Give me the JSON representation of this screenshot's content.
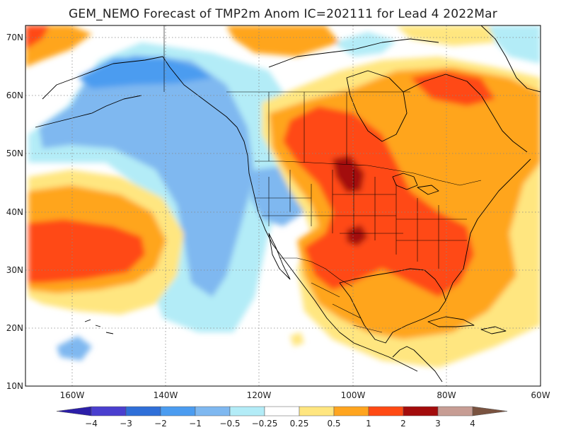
{
  "title": "GEM_NEMO Forecast of TMP2m Anom IC=202111 for Lead 4 2022Mar",
  "map": {
    "lat_labels": [
      "70N",
      "60N",
      "50N",
      "40N",
      "30N",
      "20N",
      "10N"
    ],
    "lon_labels": [
      "160W",
      "140W",
      "120W",
      "100W",
      "80W",
      "60W"
    ],
    "lat_range": [
      10,
      72
    ],
    "lon_range": [
      -170,
      -60
    ]
  },
  "legend": {
    "labels": [
      "−4",
      "−3",
      "−2",
      "−1",
      "−0.5",
      "−0.25",
      "0.25",
      "0.5",
      "1",
      "2",
      "3",
      "4"
    ],
    "colors": [
      "#2b1ea8",
      "#4a3fcf",
      "#2f6fd8",
      "#4b9cf0",
      "#7fb8f0",
      "#b3ecf7",
      "#ffffff",
      "#ffe680",
      "#ffa51f",
      "#ff4a14",
      "#a30c0c",
      "#c79d94",
      "#7a5340"
    ]
  }
}
